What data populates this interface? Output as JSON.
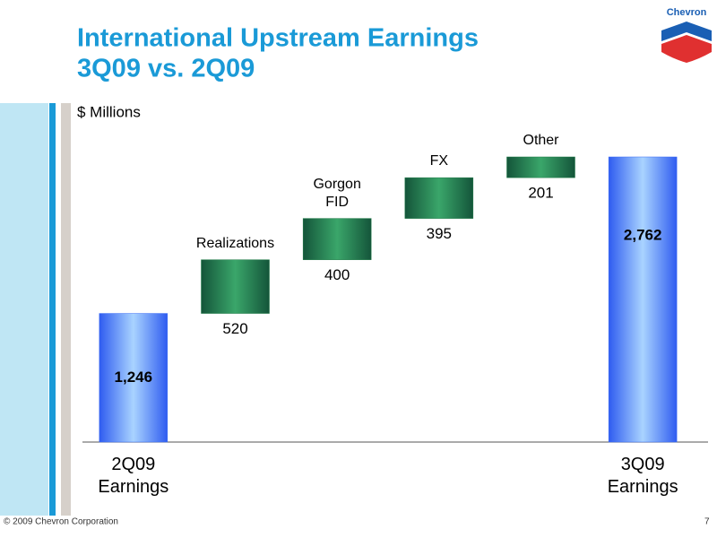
{
  "chart_data": {
    "type": "waterfall",
    "title": "International Upstream Earnings",
    "subtitle": "3Q09 vs. 2Q09",
    "unit_label": "$ Millions",
    "categories": [
      "2Q09 Earnings",
      "Realizations",
      "Gorgon FID",
      "FX",
      "Other",
      "3Q09 Earnings"
    ],
    "values": [
      1246,
      520,
      400,
      395,
      201,
      2762
    ],
    "value_labels": [
      "1,246",
      "520",
      "400",
      "395",
      "201",
      "2,762"
    ],
    "total_color": "#3a6cf4",
    "delta_color": "#1e7a46"
  },
  "logo": "Chevron",
  "footer": "© 2009 Chevron Corporation",
  "page_number": "7"
}
